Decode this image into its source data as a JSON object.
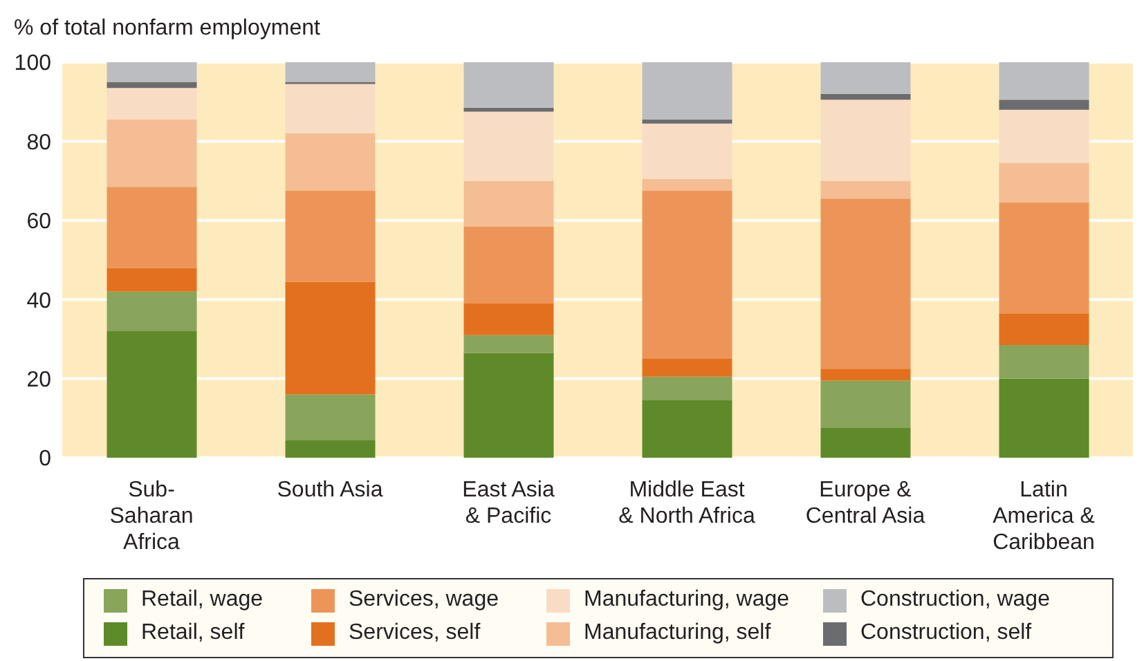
{
  "chart_data": {
    "type": "bar",
    "ylabel": "% of total nonfarm employment",
    "stacked": true,
    "categories": [
      "Sub-\nSaharan\nAfrica",
      "South Asia",
      "East Asia\n& Pacific",
      "Middle East\n& North Africa",
      "Europe &\nCentral Asia",
      "Latin\nAmerica &\nCaribbean"
    ],
    "series": [
      {
        "name": "Retail, self",
        "color": "#5e8a29",
        "values": [
          32,
          4.5,
          26.5,
          14.5,
          7.5,
          20
        ]
      },
      {
        "name": "Retail, wage",
        "color": "#88a55b",
        "values": [
          10,
          11.5,
          4.5,
          6,
          12,
          8.5
        ]
      },
      {
        "name": "Services, self",
        "color": "#e3701e",
        "values": [
          6,
          28.5,
          8,
          4.5,
          3,
          8
        ]
      },
      {
        "name": "Services, wage",
        "color": "#ed9558",
        "values": [
          20.5,
          23,
          19.5,
          42.5,
          43,
          28
        ]
      },
      {
        "name": "Manufacturing, self",
        "color": "#f4bd94",
        "values": [
          17,
          14.5,
          11.5,
          3,
          4.5,
          10
        ]
      },
      {
        "name": "Manufacturing, wage",
        "color": "#f9dcc4",
        "values": [
          8,
          12.5,
          17.5,
          14,
          20.5,
          13.5
        ]
      },
      {
        "name": "Construction, self",
        "color": "#6b6c70",
        "values": [
          1.5,
          0.5,
          1,
          1,
          1.5,
          2.5
        ]
      },
      {
        "name": "Construction, wage",
        "color": "#bcbdc0",
        "values": [
          5,
          5,
          11.5,
          14.5,
          8,
          9.5
        ]
      }
    ],
    "ylim": [
      0,
      100
    ],
    "yticks": [
      0,
      20,
      40,
      60,
      80,
      100
    ],
    "grid": "y",
    "legend": "bottom"
  }
}
